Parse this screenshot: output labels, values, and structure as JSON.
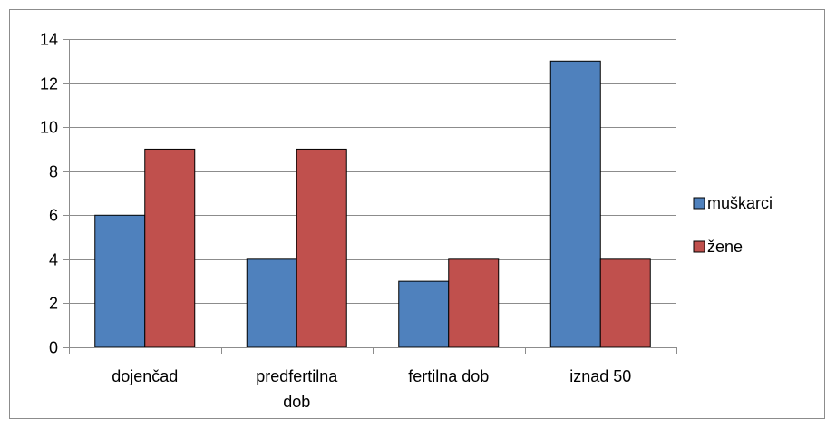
{
  "chart_data": {
    "type": "bar",
    "title": "",
    "xlabel": "",
    "ylabel": "",
    "categories": [
      "dojenčad",
      "predfertilna dob",
      "fertilna dob",
      "iznad 50"
    ],
    "category_lines": [
      [
        "dojenčad"
      ],
      [
        "predfertilna",
        "dob"
      ],
      [
        "fertilna dob"
      ],
      [
        "iznad 50"
      ]
    ],
    "series": [
      {
        "name": "muškarci",
        "values": [
          6,
          4,
          3,
          13
        ],
        "color": "#4f81bd"
      },
      {
        "name": "žene",
        "values": [
          9,
          9,
          4,
          4
        ],
        "color": "#c0504d"
      }
    ],
    "ylim": [
      0,
      14
    ],
    "yticks": [
      0,
      2,
      4,
      6,
      8,
      10,
      12,
      14
    ],
    "grid": true,
    "legend_position": "right"
  }
}
